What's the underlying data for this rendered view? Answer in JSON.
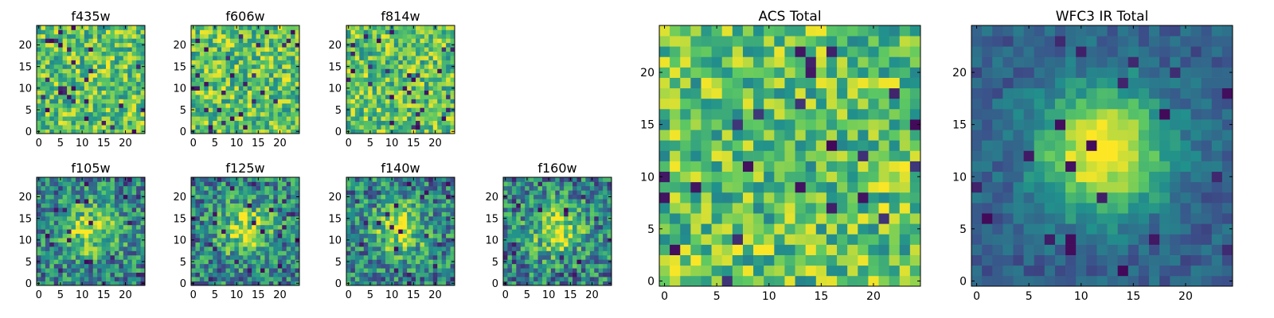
{
  "chart_data": [
    {
      "type": "heatmap",
      "title": "f435w",
      "xticks": [
        "0",
        "5",
        "10",
        "15",
        "20"
      ],
      "yticks": [
        "0",
        "5",
        "10",
        "15",
        "20"
      ],
      "xlim": [
        0,
        25
      ],
      "ylim": [
        0,
        25
      ],
      "grid": false,
      "size": 25,
      "pattern": "noise",
      "seed": 11
    },
    {
      "type": "heatmap",
      "title": "f606w",
      "xticks": [
        "0",
        "5",
        "10",
        "15",
        "20"
      ],
      "yticks": [
        "0",
        "5",
        "10",
        "15",
        "20"
      ],
      "xlim": [
        0,
        25
      ],
      "ylim": [
        0,
        25
      ],
      "grid": false,
      "size": 25,
      "pattern": "noise",
      "seed": 23
    },
    {
      "type": "heatmap",
      "title": "f814w",
      "xticks": [
        "0",
        "5",
        "10",
        "15",
        "20"
      ],
      "yticks": [
        "0",
        "5",
        "10",
        "15",
        "20"
      ],
      "xlim": [
        0,
        25
      ],
      "ylim": [
        0,
        25
      ],
      "grid": false,
      "size": 25,
      "pattern": "noise",
      "seed": 37
    },
    {
      "type": "heatmap",
      "title": "f105w",
      "xticks": [
        "0",
        "5",
        "10",
        "15",
        "20"
      ],
      "yticks": [
        "0",
        "5",
        "10",
        "15",
        "20"
      ],
      "xlim": [
        0,
        25
      ],
      "ylim": [
        0,
        25
      ],
      "grid": false,
      "size": 25,
      "pattern": "blob",
      "seed": 41
    },
    {
      "type": "heatmap",
      "title": "f125w",
      "xticks": [
        "0",
        "5",
        "10",
        "15",
        "20"
      ],
      "yticks": [
        "0",
        "5",
        "10",
        "15",
        "20"
      ],
      "xlim": [
        0,
        25
      ],
      "ylim": [
        0,
        25
      ],
      "grid": false,
      "size": 25,
      "pattern": "blob",
      "seed": 53
    },
    {
      "type": "heatmap",
      "title": "f140w",
      "xticks": [
        "0",
        "5",
        "10",
        "15",
        "20"
      ],
      "yticks": [
        "0",
        "5",
        "10",
        "15",
        "20"
      ],
      "xlim": [
        0,
        25
      ],
      "ylim": [
        0,
        25
      ],
      "grid": false,
      "size": 25,
      "pattern": "blob",
      "seed": 67
    },
    {
      "type": "heatmap",
      "title": "f160w",
      "xticks": [
        "0",
        "5",
        "10",
        "15",
        "20"
      ],
      "yticks": [
        "0",
        "5",
        "10",
        "15",
        "20"
      ],
      "xlim": [
        0,
        25
      ],
      "ylim": [
        0,
        25
      ],
      "grid": false,
      "size": 25,
      "pattern": "blob",
      "seed": 79
    },
    {
      "type": "heatmap",
      "title": "ACS Total",
      "xticks": [
        "0",
        "5",
        "10",
        "15",
        "20"
      ],
      "yticks": [
        "0",
        "5",
        "10",
        "15",
        "20"
      ],
      "xlim": [
        0,
        25
      ],
      "ylim": [
        0,
        25
      ],
      "grid": false,
      "size": 25,
      "pattern": "noise",
      "seed": 97
    },
    {
      "type": "heatmap",
      "title": "WFC3 IR Total",
      "xticks": [
        "0",
        "5",
        "10",
        "15",
        "20"
      ],
      "yticks": [
        "0",
        "5",
        "10",
        "15",
        "20"
      ],
      "xlim": [
        0,
        25
      ],
      "ylim": [
        0,
        25
      ],
      "grid": false,
      "size": 25,
      "pattern": "blob-smooth",
      "seed": 113
    }
  ],
  "colormap": [
    "#440154",
    "#3b528b",
    "#21918c",
    "#5ec962",
    "#fde725"
  ]
}
